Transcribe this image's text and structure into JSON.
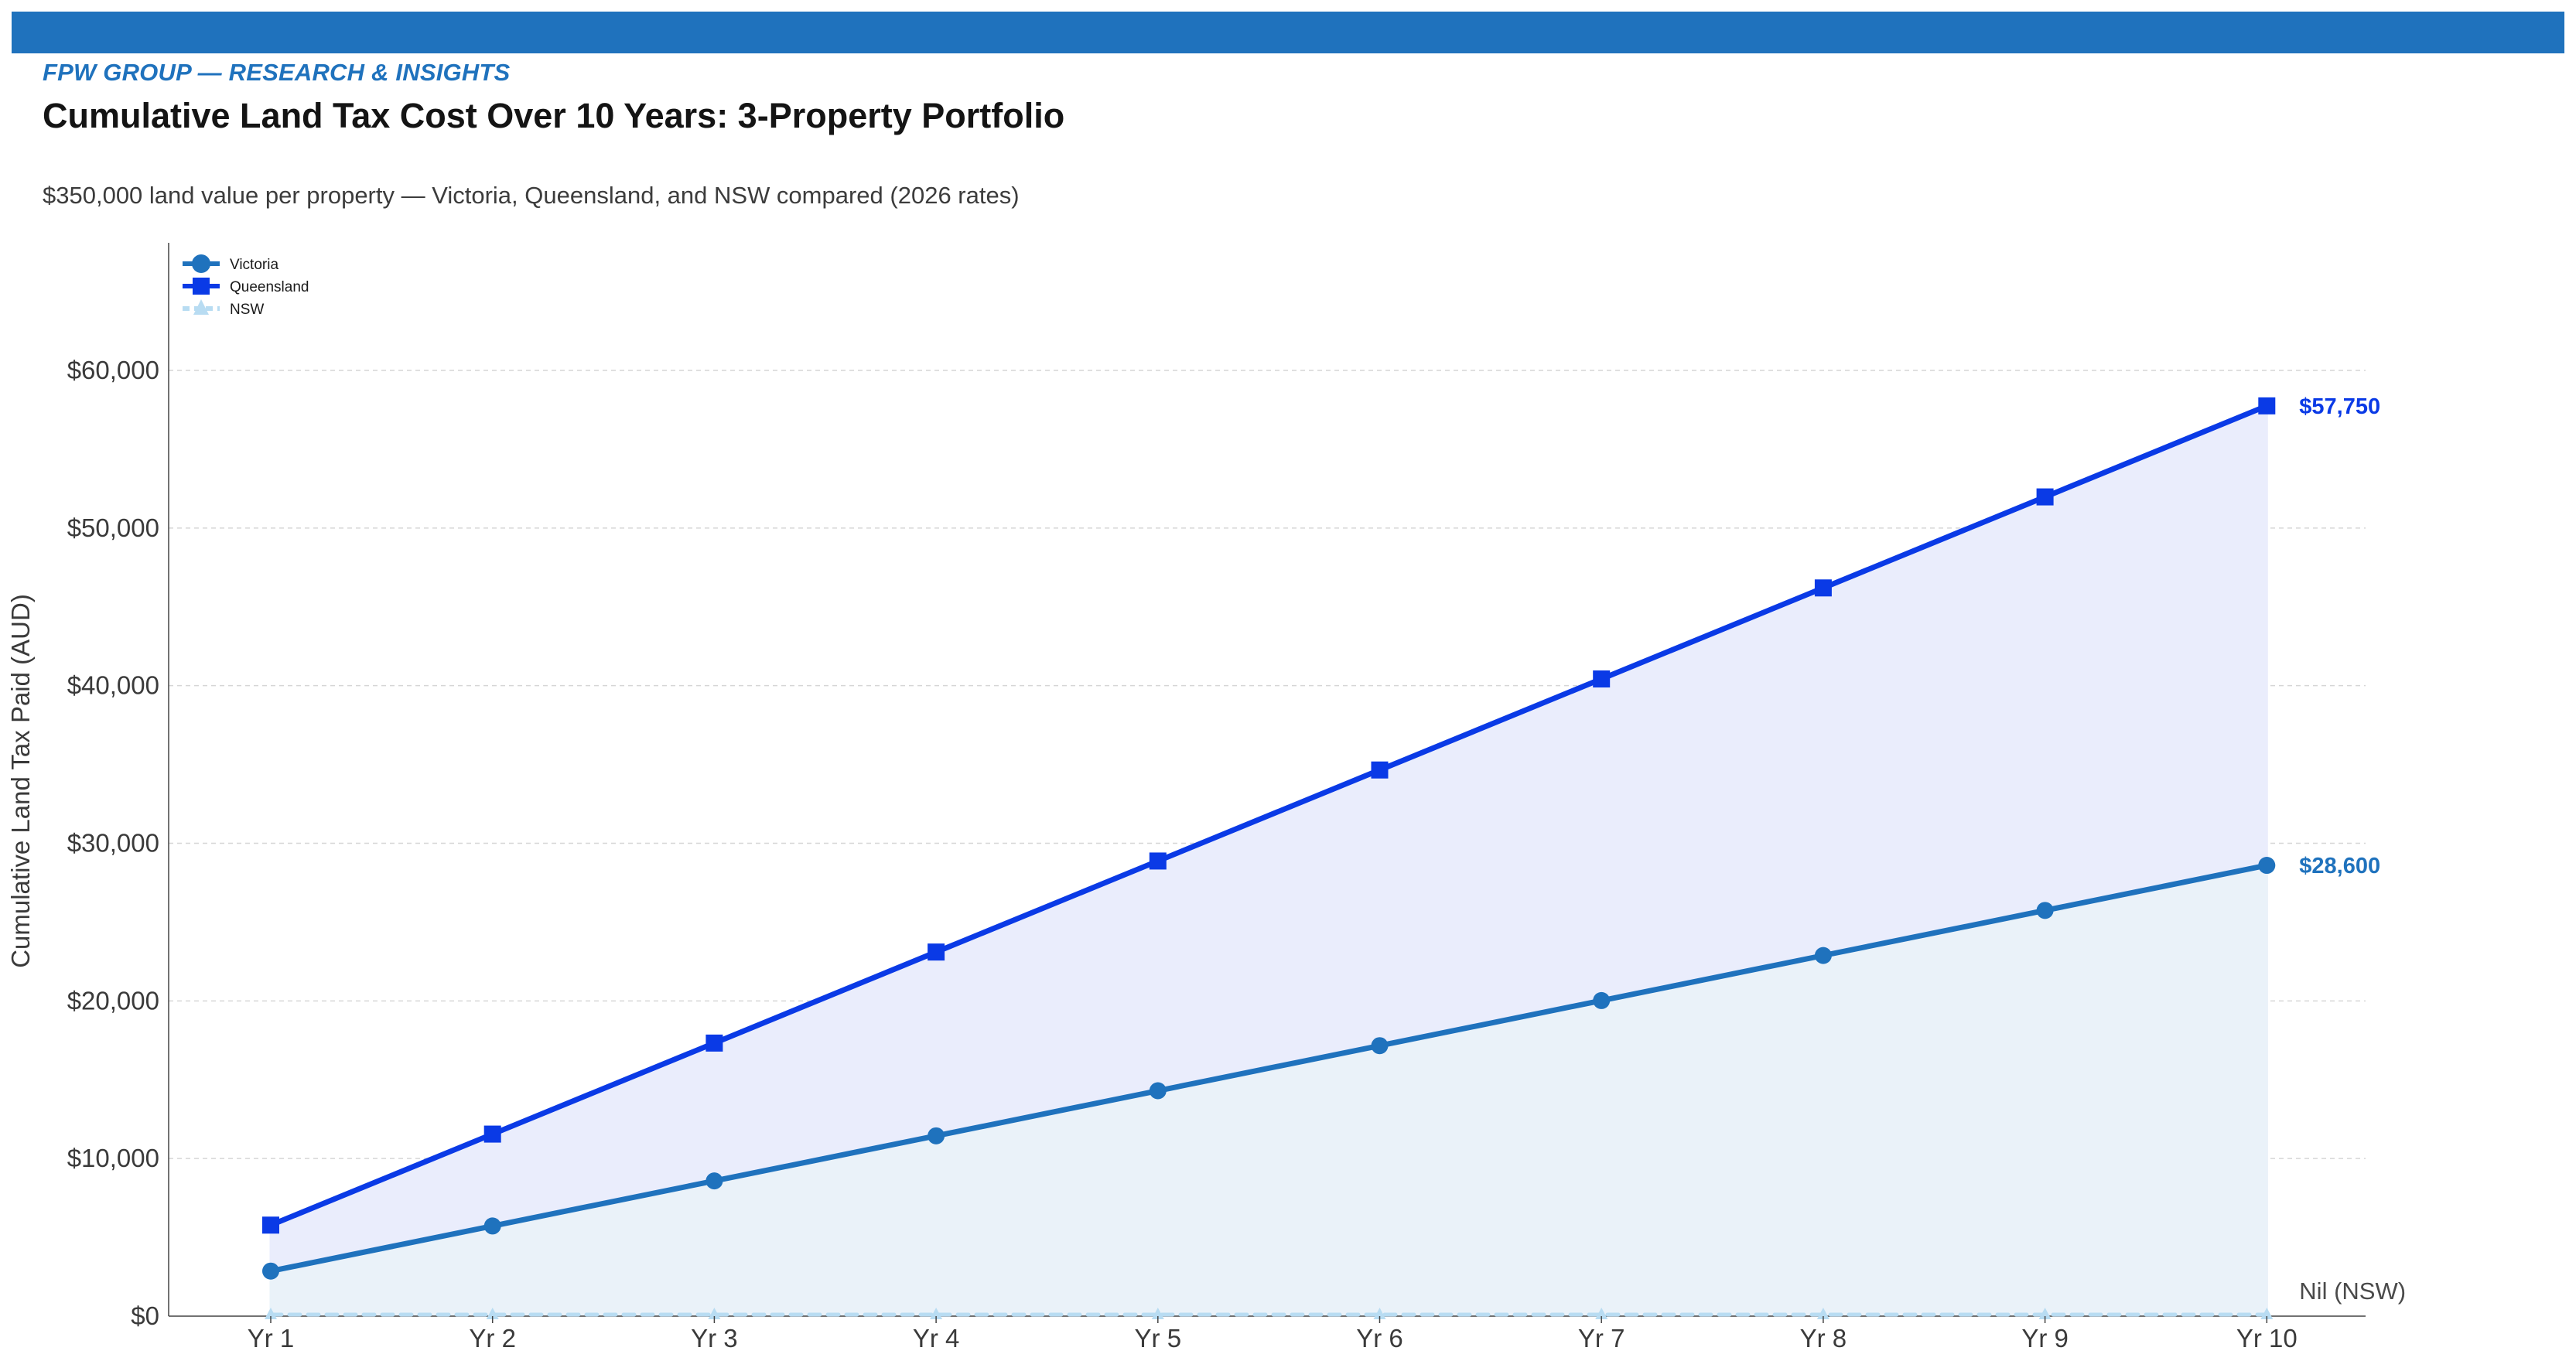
{
  "header": {
    "brand": "FPW GROUP — RESEARCH & INSIGHTS",
    "title": "Cumulative Land Tax Cost Over 10 Years: 3-Property Portfolio",
    "subtitle": "$350,000 land value per property — Victoria, Queensland, and NSW compared (2026 rates)"
  },
  "colors": {
    "brand": "#1f72bd",
    "victoria": "#1f72bd",
    "queensland": "#0a3ae6",
    "nsw": "#b8dcf2",
    "victoria_fill": "#eaf2f9",
    "queensland_fill": "#eaedfc"
  },
  "chart_data": {
    "type": "line",
    "title": "Cumulative Land Tax Cost Over 10 Years: 3-Property Portfolio",
    "subtitle": "$350,000 land value per property — Victoria, Queensland, and NSW compared (2026 rates)",
    "xlabel": "",
    "ylabel": "Cumulative Land Tax Paid (AUD)",
    "categories": [
      "Yr 1",
      "Yr 2",
      "Yr 3",
      "Yr 4",
      "Yr 5",
      "Yr 6",
      "Yr 7",
      "Yr 8",
      "Yr 9",
      "Yr 10"
    ],
    "ylim": [
      0,
      60000
    ],
    "yticks": [
      0,
      10000,
      20000,
      30000,
      40000,
      50000,
      60000
    ],
    "ytick_labels": [
      "$0",
      "$10,000",
      "$20,000",
      "$30,000",
      "$40,000",
      "$50,000",
      "$60,000"
    ],
    "grid": true,
    "legend_position": "top-left",
    "series": [
      {
        "name": "Victoria",
        "marker": "circle",
        "values": [
          2860,
          5720,
          8580,
          11440,
          14300,
          17160,
          20020,
          22880,
          25740,
          28600
        ],
        "end_label": "$28,600"
      },
      {
        "name": "Queensland",
        "marker": "square",
        "values": [
          5775,
          11550,
          17325,
          23100,
          28875,
          34650,
          40425,
          46200,
          51975,
          57750
        ],
        "end_label": "$57,750"
      },
      {
        "name": "NSW",
        "marker": "triangle",
        "line_style": "dashed",
        "values": [
          0,
          0,
          0,
          0,
          0,
          0,
          0,
          0,
          0,
          0
        ],
        "end_label": "Nil (NSW)"
      }
    ]
  }
}
